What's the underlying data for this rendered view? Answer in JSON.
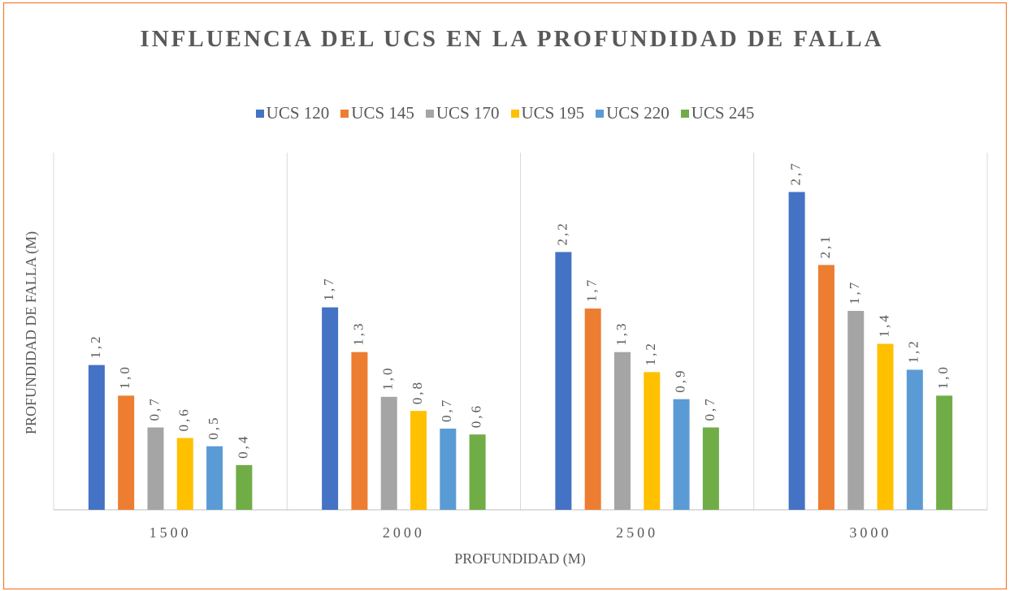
{
  "chart_data": {
    "type": "bar",
    "title": "INFLUENCIA DEL UCS EN LA PROFUNDIDAD DE FALLA",
    "x_label": "PROFUNDIDAD (M)",
    "y_label": "PROFUNDIDAD DE FALLA (M)",
    "categories": [
      "1500",
      "2000",
      "2500",
      "3000"
    ],
    "ylim": [
      0,
      3
    ],
    "series": [
      {
        "name": "UCS 120",
        "color": "#4472c4",
        "values": [
          1.23,
          1.72,
          2.19,
          2.7
        ],
        "value_labels": [
          "1,2",
          "1,7",
          "2,2",
          "2,7"
        ]
      },
      {
        "name": "UCS 145",
        "color": "#ed7d31",
        "values": [
          0.97,
          1.34,
          1.71,
          2.08
        ],
        "value_labels": [
          "1,0",
          "1,3",
          "1,7",
          "2,1"
        ]
      },
      {
        "name": "UCS 170",
        "color": "#a5a5a5",
        "values": [
          0.7,
          0.96,
          1.34,
          1.69
        ],
        "value_labels": [
          "0,7",
          "1,0",
          "1,3",
          "1,7"
        ]
      },
      {
        "name": "UCS 195",
        "color": "#ffc000",
        "values": [
          0.61,
          0.84,
          1.17,
          1.41
        ],
        "value_labels": [
          "0,6",
          "0,8",
          "1,2",
          "1,4"
        ]
      },
      {
        "name": "UCS 220",
        "color": "#5b9bd5",
        "values": [
          0.54,
          0.69,
          0.94,
          1.19
        ],
        "value_labels": [
          "0,5",
          "0,7",
          "0,9",
          "1,2"
        ]
      },
      {
        "name": "UCS 245",
        "color": "#70ad47",
        "values": [
          0.38,
          0.64,
          0.7,
          0.97
        ],
        "value_labels": [
          "0,4",
          "0,6",
          "0,7",
          "1,0"
        ]
      }
    ]
  }
}
